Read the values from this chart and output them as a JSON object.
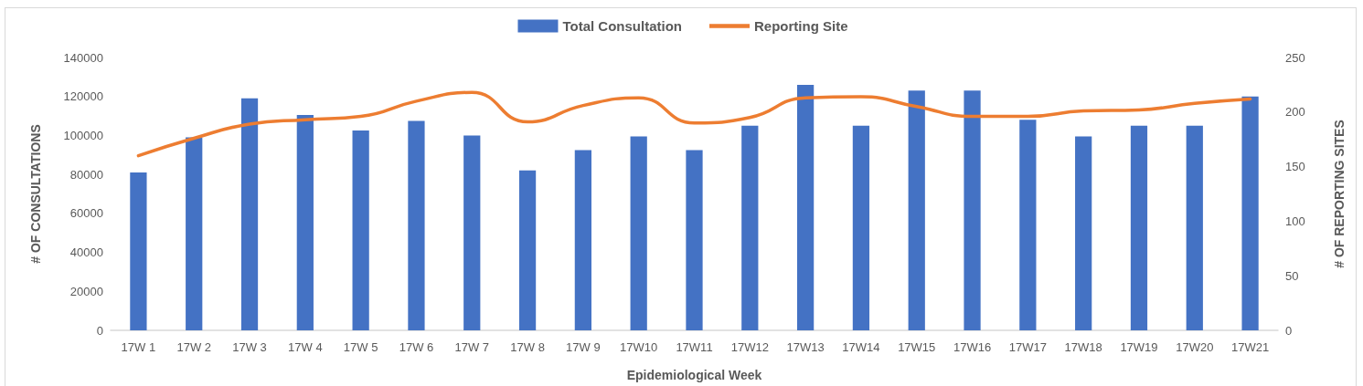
{
  "chart_data": {
    "type": "bar",
    "xlabel": "Epidemiological Week",
    "ylabel": "# OF CONSULTATIONS",
    "y2label": "# OF REPORTING SITES",
    "categories": [
      "17W 1",
      "17W 2",
      "17W 3",
      "17W 4",
      "17W 5",
      "17W 6",
      "17W 7",
      "17W 8",
      "17W 9",
      "17W10",
      "17W11",
      "17W12",
      "17W13",
      "17W14",
      "17W15",
      "17W16",
      "17W17",
      "17W18",
      "17W19",
      "17W20",
      "17W21"
    ],
    "series": [
      {
        "name": "Total Consultation",
        "color": "#4472c4",
        "values": [
          81000,
          99000,
          119000,
          110500,
          102500,
          107500,
          100000,
          82000,
          92500,
          99500,
          92500,
          105000,
          126000,
          105000,
          123000,
          123000,
          108000,
          99500,
          105000,
          105000,
          120000
        ]
      },
      {
        "name": "Reporting Site",
        "type": "line",
        "axis": "y2",
        "color": "#ed7d31",
        "marker": "none",
        "values": [
          160,
          176,
          189,
          193,
          196,
          210,
          218,
          191,
          206,
          213,
          190,
          195,
          213,
          214,
          205,
          196,
          196,
          201,
          202,
          208,
          212
        ]
      }
    ],
    "ylim": [
      0,
      140000
    ],
    "yticks": [
      0,
      20000,
      40000,
      60000,
      80000,
      100000,
      120000,
      140000
    ],
    "y2lim": [
      0,
      250
    ],
    "y2ticks": [
      0,
      50,
      100,
      150,
      200,
      250
    ],
    "grid": false,
    "legend": "top"
  }
}
